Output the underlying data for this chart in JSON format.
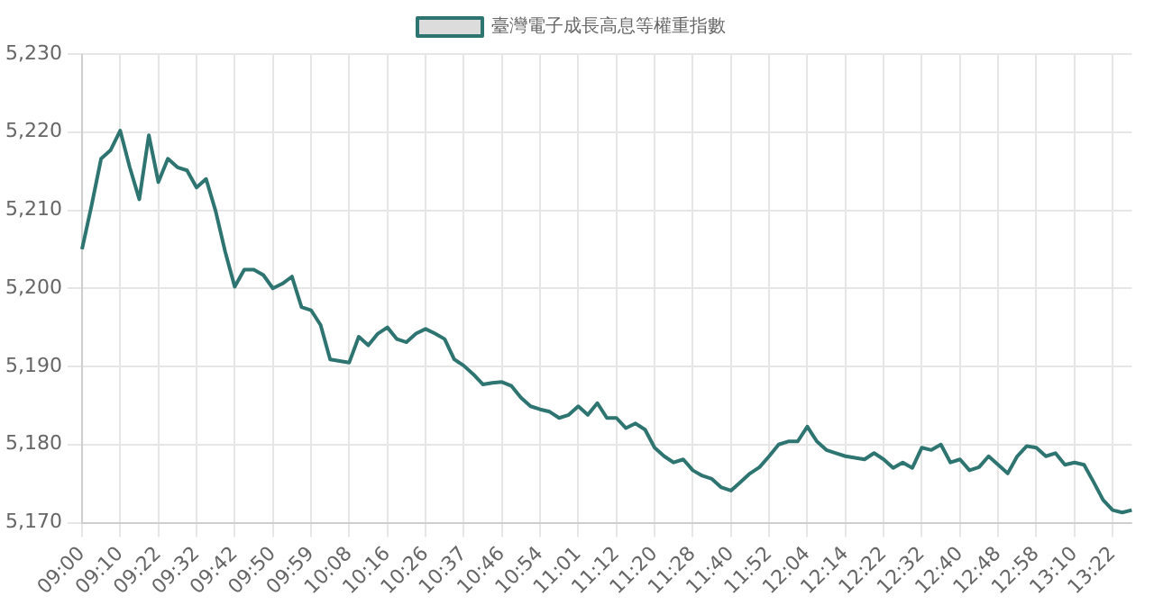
{
  "chart_data": {
    "type": "line",
    "categories": [
      "09:00",
      null,
      null,
      null,
      "09:10",
      null,
      null,
      null,
      "09:22",
      null,
      null,
      null,
      "09:32",
      null,
      null,
      null,
      "09:42",
      null,
      null,
      null,
      "09:50",
      null,
      null,
      null,
      "09:59",
      null,
      null,
      null,
      "10:08",
      null,
      null,
      null,
      "10:16",
      null,
      null,
      null,
      "10:26",
      null,
      null,
      null,
      "10:37",
      null,
      null,
      null,
      "10:46",
      null,
      null,
      null,
      "10:54",
      null,
      null,
      null,
      "11:01",
      null,
      null,
      null,
      "11:12",
      null,
      null,
      null,
      "11:20",
      null,
      null,
      null,
      "11:28",
      null,
      null,
      null,
      "11:40",
      null,
      null,
      null,
      "11:52",
      null,
      null,
      null,
      "12:04",
      null,
      null,
      null,
      "12:14",
      null,
      null,
      null,
      "12:22",
      null,
      null,
      null,
      "12:32",
      null,
      null,
      null,
      "12:40",
      null,
      null,
      null,
      "12:48",
      null,
      null,
      null,
      "12:58",
      null,
      null,
      null,
      "13:10",
      null,
      null,
      null,
      "13:22",
      null,
      null
    ],
    "series": [
      {
        "name": "臺灣電子成長高息等權重指數",
        "color": "#2e7470",
        "values": [
          5205.0,
          5210.6,
          5216.6,
          5217.7,
          5220.2,
          5215.5,
          5211.4,
          5219.6,
          5213.6,
          5216.6,
          5215.5,
          5215.1,
          5212.9,
          5214.0,
          5209.9,
          5204.7,
          5200.2,
          5202.4,
          5202.4,
          5201.7,
          5200.0,
          5200.6,
          5201.5,
          5197.6,
          5197.2,
          5195.3,
          5190.9,
          5190.7,
          5190.5,
          5193.8,
          5192.7,
          5194.2,
          5195.0,
          5193.5,
          5193.1,
          5194.2,
          5194.8,
          5194.2,
          5193.5,
          5190.9,
          5190.1,
          5189.0,
          5187.7,
          5187.9,
          5188.0,
          5187.5,
          5186.0,
          5184.9,
          5184.5,
          5184.2,
          5183.4,
          5183.8,
          5184.9,
          5183.8,
          5185.3,
          5183.4,
          5183.4,
          5182.1,
          5182.7,
          5181.9,
          5179.6,
          5178.5,
          5177.7,
          5178.1,
          5176.7,
          5176.0,
          5175.6,
          5174.5,
          5174.1,
          5175.2,
          5176.3,
          5177.1,
          5178.5,
          5180.0,
          5180.4,
          5180.4,
          5182.3,
          5180.4,
          5179.3,
          5178.9,
          5178.5,
          5178.3,
          5178.1,
          5178.9,
          5178.1,
          5177.0,
          5177.7,
          5177.0,
          5179.6,
          5179.3,
          5180.0,
          5177.7,
          5178.1,
          5176.7,
          5177.1,
          5178.5,
          5177.4,
          5176.3,
          5178.5,
          5179.8,
          5179.6,
          5178.5,
          5178.9,
          5177.4,
          5177.7,
          5177.4,
          5175.2,
          5172.9,
          5171.6,
          5171.3,
          5171.6
        ]
      }
    ],
    "ylim": [
      5170,
      5230
    ],
    "yticks": [
      {
        "value": 5170,
        "label": "5,170"
      },
      {
        "value": 5180,
        "label": "5,180"
      },
      {
        "value": 5190,
        "label": "5,190"
      },
      {
        "value": 5200,
        "label": "5,200"
      },
      {
        "value": 5210,
        "label": "5,210"
      },
      {
        "value": 5220,
        "label": "5,220"
      },
      {
        "value": 5230,
        "label": "5,230"
      }
    ],
    "grid": true,
    "legend": "top",
    "marker": "none",
    "line_style": "solid"
  }
}
